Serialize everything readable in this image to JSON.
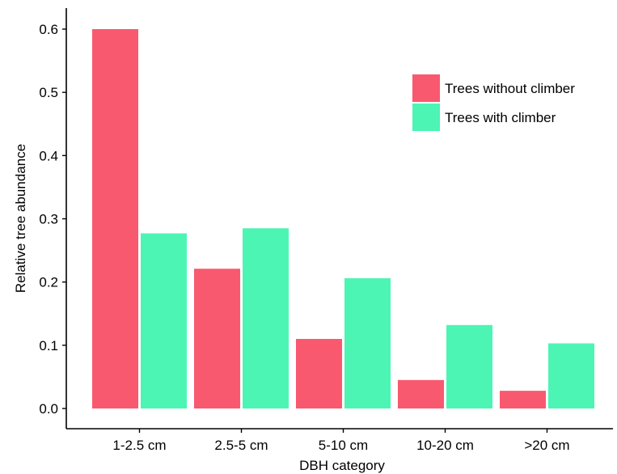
{
  "chart_data": {
    "type": "bar",
    "categories": [
      "1-2.5 cm",
      "2.5-5 cm",
      "5-10 cm",
      "10-20 cm",
      ">20 cm"
    ],
    "series": [
      {
        "name": "Trees without climber",
        "color": "#f8596f",
        "values": [
          0.6,
          0.221,
          0.11,
          0.045,
          0.028
        ]
      },
      {
        "name": "Trees with climber",
        "color": "#4cf5b4",
        "values": [
          0.277,
          0.285,
          0.206,
          0.132,
          0.103
        ]
      }
    ],
    "xlabel": "DBH category",
    "ylabel": "Relative tree abundance",
    "ylim": [
      0,
      0.6
    ],
    "yticks": [
      0.0,
      0.1,
      0.2,
      0.3,
      0.4,
      0.5,
      0.6
    ],
    "ytick_labels": [
      "0.0",
      "0.1",
      "0.2",
      "0.3",
      "0.4",
      "0.5",
      "0.6"
    ],
    "grid": false,
    "legend_position": "top-right"
  }
}
